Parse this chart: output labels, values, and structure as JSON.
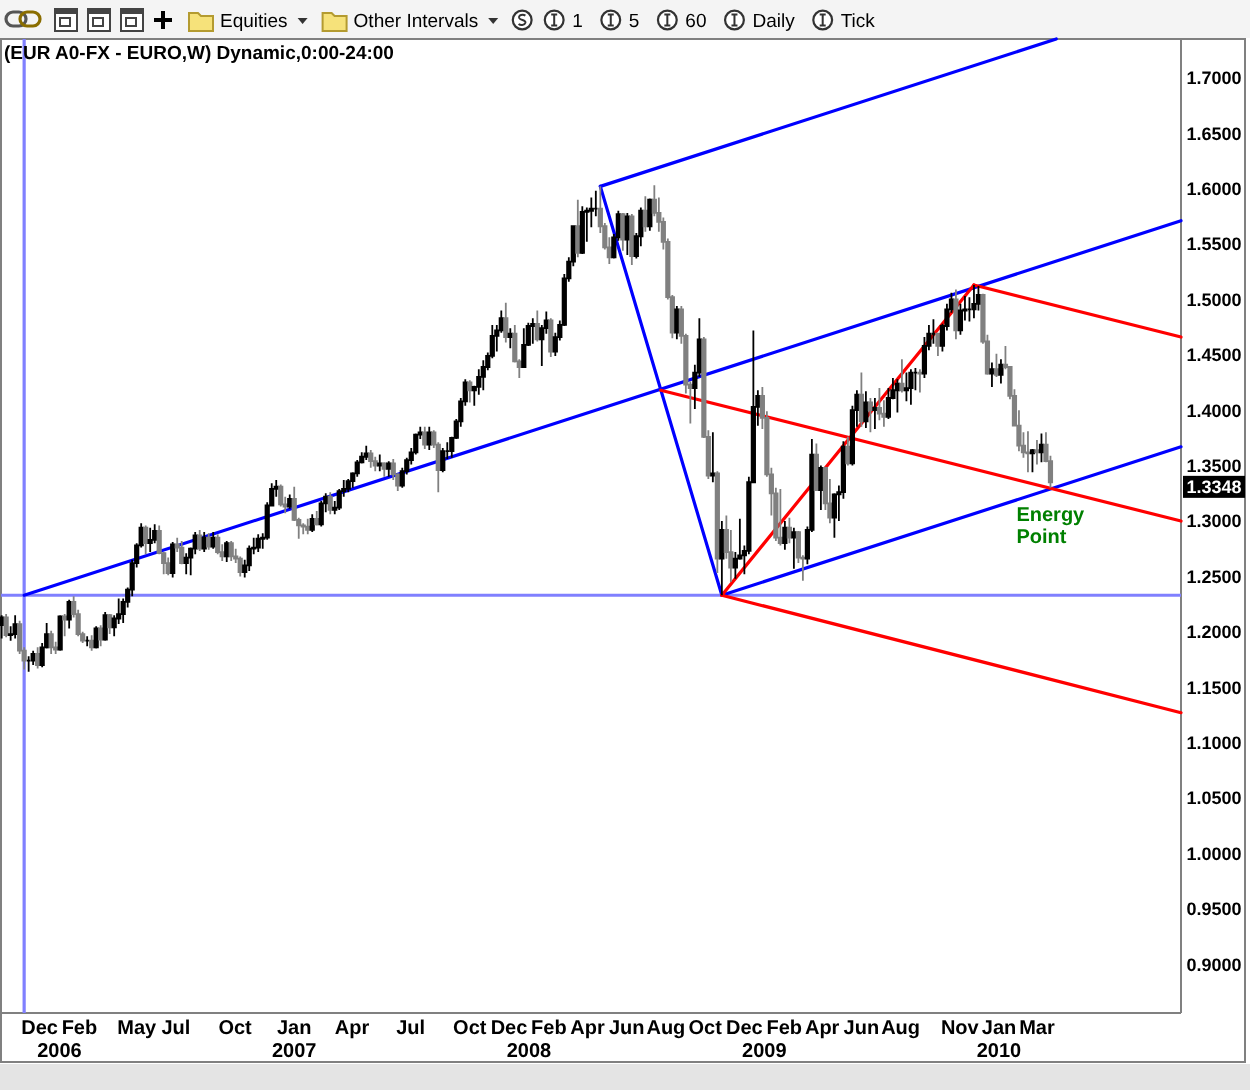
{
  "chart_data": {
    "type": "candlestick",
    "title": "(EUR A0-FX - EURO,W) Dynamic,0:00-24:00",
    "xlim": [
      "2005-10-02",
      "2010-10-11"
    ],
    "ylim": [
      0.856,
      1.735
    ],
    "xticks": [
      {
        "value": "2005-12-01",
        "label": "Dec"
      },
      {
        "value": "2006-02-01",
        "label": "Feb"
      },
      {
        "value": "2006-05-01",
        "label": "May"
      },
      {
        "value": "2006-07-01",
        "label": "Jul"
      },
      {
        "value": "2006-10-01",
        "label": "Oct"
      },
      {
        "value": "2007-01-01",
        "label": "Jan"
      },
      {
        "value": "2007-04-01",
        "label": "Apr"
      },
      {
        "value": "2007-07-01",
        "label": "Jul"
      },
      {
        "value": "2007-10-01",
        "label": "Oct"
      },
      {
        "value": "2007-12-01",
        "label": "Dec"
      },
      {
        "value": "2008-02-01",
        "label": "Feb"
      },
      {
        "value": "2008-04-01",
        "label": "Apr"
      },
      {
        "value": "2008-06-01",
        "label": "Jun"
      },
      {
        "value": "2008-08-01",
        "label": "Aug"
      },
      {
        "value": "2008-10-01",
        "label": "Oct"
      },
      {
        "value": "2008-12-01",
        "label": "Dec"
      },
      {
        "value": "2009-02-01",
        "label": "Feb"
      },
      {
        "value": "2009-04-01",
        "label": "Apr"
      },
      {
        "value": "2009-06-01",
        "label": "Jun"
      },
      {
        "value": "2009-08-01",
        "label": "Aug"
      },
      {
        "value": "2009-11-01",
        "label": "Nov"
      },
      {
        "value": "2010-01-01",
        "label": "Jan"
      },
      {
        "value": "2010-03-01",
        "label": "Mar"
      }
    ],
    "x2lim": [
      "2005-10-02",
      "2010-10-11"
    ],
    "x2ticks": [
      {
        "value": "2006-01-01",
        "label": "2006"
      },
      {
        "value": "2007-01-01",
        "label": "2007"
      },
      {
        "value": "2008-01-01",
        "label": "2008"
      },
      {
        "value": "2009-01-01",
        "label": "2009"
      },
      {
        "value": "2010-01-01",
        "label": "2010"
      }
    ],
    "yticks": [
      {
        "value": 0.9,
        "label": "0.9000"
      },
      {
        "value": 0.95,
        "label": "0.9500"
      },
      {
        "value": 1,
        "label": "1.0000"
      },
      {
        "value": 1.05,
        "label": "1.0500"
      },
      {
        "value": 1.1,
        "label": "1.1000"
      },
      {
        "value": 1.15,
        "label": "1.1500"
      },
      {
        "value": 1.2,
        "label": "1.2000"
      },
      {
        "value": 1.25,
        "label": "1.2500"
      },
      {
        "value": 1.3,
        "label": "1.3000"
      },
      {
        "value": 1.35,
        "label": "1.3500"
      },
      {
        "value": 1.4,
        "label": "1.4000"
      },
      {
        "value": 1.45,
        "label": "1.4500"
      },
      {
        "value": 1.5,
        "label": "1.5000"
      },
      {
        "value": 1.55,
        "label": "1.5500"
      },
      {
        "value": 1.6,
        "label": "1.6000"
      },
      {
        "value": 1.65,
        "label": "1.6500"
      },
      {
        "value": 1.7,
        "label": "1.7000"
      }
    ],
    "x": [
      "2005-10-03",
      "2005-10-10",
      "2005-10-17",
      "2005-10-24",
      "2005-10-31",
      "2005-11-07",
      "2005-11-14",
      "2005-11-21",
      "2005-11-28",
      "2005-12-05",
      "2005-12-12",
      "2005-12-19",
      "2005-12-26",
      "2006-01-02",
      "2006-01-09",
      "2006-01-16",
      "2006-01-23",
      "2006-01-30",
      "2006-02-06",
      "2006-02-13",
      "2006-02-20",
      "2006-02-27",
      "2006-03-06",
      "2006-03-13",
      "2006-03-20",
      "2006-03-27",
      "2006-04-03",
      "2006-04-10",
      "2006-04-17",
      "2006-04-24",
      "2006-05-01",
      "2006-05-08",
      "2006-05-15",
      "2006-05-22",
      "2006-05-29",
      "2006-06-05",
      "2006-06-12",
      "2006-06-19",
      "2006-06-26",
      "2006-07-03",
      "2006-07-10",
      "2006-07-17",
      "2006-07-24",
      "2006-07-31",
      "2006-08-07",
      "2006-08-14",
      "2006-08-21",
      "2006-08-28",
      "2006-09-04",
      "2006-09-11",
      "2006-09-18",
      "2006-09-25",
      "2006-10-02",
      "2006-10-09",
      "2006-10-16",
      "2006-10-23",
      "2006-10-30",
      "2006-11-06",
      "2006-11-13",
      "2006-11-20",
      "2006-11-27",
      "2006-12-04",
      "2006-12-11",
      "2006-12-18",
      "2006-12-25",
      "2007-01-01",
      "2007-01-08",
      "2007-01-15",
      "2007-01-22",
      "2007-01-29",
      "2007-02-05",
      "2007-02-12",
      "2007-02-19",
      "2007-02-26",
      "2007-03-05",
      "2007-03-12",
      "2007-03-19",
      "2007-03-26",
      "2007-04-02",
      "2007-04-09",
      "2007-04-16",
      "2007-04-23",
      "2007-04-30",
      "2007-05-07",
      "2007-05-14",
      "2007-05-21",
      "2007-05-28",
      "2007-06-04",
      "2007-06-11",
      "2007-06-18",
      "2007-06-25",
      "2007-07-02",
      "2007-07-09",
      "2007-07-16",
      "2007-07-23",
      "2007-07-30",
      "2007-08-06",
      "2007-08-13",
      "2007-08-20",
      "2007-08-27",
      "2007-09-03",
      "2007-09-10",
      "2007-09-17",
      "2007-09-24",
      "2007-10-01",
      "2007-10-08",
      "2007-10-15",
      "2007-10-22",
      "2007-10-29",
      "2007-11-05",
      "2007-11-12",
      "2007-11-19",
      "2007-11-26",
      "2007-12-03",
      "2007-12-10",
      "2007-12-17",
      "2007-12-24",
      "2007-12-31",
      "2008-01-07",
      "2008-01-14",
      "2008-01-21",
      "2008-01-28",
      "2008-02-04",
      "2008-02-11",
      "2008-02-18",
      "2008-02-25",
      "2008-03-03",
      "2008-03-10",
      "2008-03-17",
      "2008-03-24",
      "2008-03-31",
      "2008-04-07",
      "2008-04-14",
      "2008-04-21",
      "2008-04-28",
      "2008-05-05",
      "2008-05-12",
      "2008-05-19",
      "2008-05-26",
      "2008-06-02",
      "2008-06-09",
      "2008-06-16",
      "2008-06-23",
      "2008-06-30",
      "2008-07-07",
      "2008-07-14",
      "2008-07-21",
      "2008-07-28",
      "2008-08-04",
      "2008-08-11",
      "2008-08-18",
      "2008-08-25",
      "2008-09-01",
      "2008-09-08",
      "2008-09-15",
      "2008-09-22",
      "2008-09-29",
      "2008-10-06",
      "2008-10-13",
      "2008-10-20",
      "2008-10-27",
      "2008-11-03",
      "2008-11-10",
      "2008-11-17",
      "2008-11-24",
      "2008-12-01",
      "2008-12-08",
      "2008-12-15",
      "2008-12-22",
      "2008-12-29",
      "2009-01-05",
      "2009-01-12",
      "2009-01-19",
      "2009-01-26",
      "2009-02-02",
      "2009-02-09",
      "2009-02-16",
      "2009-02-23",
      "2009-03-02",
      "2009-03-09",
      "2009-03-16",
      "2009-03-23",
      "2009-03-30",
      "2009-04-06",
      "2009-04-13",
      "2009-04-20",
      "2009-04-27",
      "2009-05-04",
      "2009-05-11",
      "2009-05-18",
      "2009-05-25",
      "2009-06-01",
      "2009-06-08",
      "2009-06-15",
      "2009-06-22",
      "2009-06-29",
      "2009-07-06",
      "2009-07-13",
      "2009-07-20",
      "2009-07-27",
      "2009-08-03",
      "2009-08-10",
      "2009-08-17",
      "2009-08-24",
      "2009-08-31",
      "2009-09-07",
      "2009-09-14",
      "2009-09-21",
      "2009-09-28",
      "2009-10-05",
      "2009-10-12",
      "2009-10-19",
      "2009-10-26",
      "2009-11-02",
      "2009-11-09",
      "2009-11-16",
      "2009-11-23",
      "2009-11-30",
      "2009-12-07",
      "2009-12-14",
      "2009-12-21",
      "2009-12-28",
      "2010-01-04",
      "2010-01-11",
      "2010-01-18",
      "2010-01-25",
      "2010-02-01",
      "2010-02-08",
      "2010-02-15",
      "2010-02-22",
      "2010-03-01",
      "2010-03-08",
      "2010-03-15",
      "2010-03-22"
    ],
    "ohlc": [
      [
        1.206,
        1.215,
        1.194,
        1.213
      ],
      [
        1.213,
        1.216,
        1.195,
        1.197
      ],
      [
        1.197,
        1.205,
        1.192,
        1.198
      ],
      [
        1.198,
        1.215,
        1.194,
        1.207
      ],
      [
        1.207,
        1.21,
        1.18,
        1.183
      ],
      [
        1.183,
        1.186,
        1.166,
        1.174
      ],
      [
        1.174,
        1.178,
        1.164,
        1.174
      ],
      [
        1.174,
        1.183,
        1.17,
        1.18
      ],
      [
        1.18,
        1.186,
        1.167,
        1.17
      ],
      [
        1.17,
        1.19,
        1.168,
        1.186
      ],
      [
        1.186,
        1.208,
        1.185,
        1.198
      ],
      [
        1.198,
        1.201,
        1.18,
        1.186
      ],
      [
        1.186,
        1.191,
        1.18,
        1.184
      ],
      [
        1.184,
        1.215,
        1.183,
        1.214
      ],
      [
        1.214,
        1.216,
        1.196,
        1.211
      ],
      [
        1.211,
        1.229,
        1.203,
        1.227
      ],
      [
        1.227,
        1.232,
        1.213,
        1.216
      ],
      [
        1.216,
        1.22,
        1.196,
        1.198
      ],
      [
        1.198,
        1.2,
        1.19,
        1.192
      ],
      [
        1.192,
        1.196,
        1.187,
        1.192
      ],
      [
        1.192,
        1.197,
        1.183,
        1.186
      ],
      [
        1.186,
        1.205,
        1.185,
        1.203
      ],
      [
        1.203,
        1.206,
        1.187,
        1.193
      ],
      [
        1.193,
        1.218,
        1.192,
        1.215
      ],
      [
        1.215,
        1.216,
        1.198,
        1.204
      ],
      [
        1.204,
        1.215,
        1.196,
        1.212
      ],
      [
        1.212,
        1.23,
        1.207,
        1.216
      ],
      [
        1.216,
        1.23,
        1.208,
        1.227
      ],
      [
        1.227,
        1.24,
        1.222,
        1.238
      ],
      [
        1.238,
        1.265,
        1.232,
        1.262
      ],
      [
        1.262,
        1.28,
        1.258,
        1.278
      ],
      [
        1.278,
        1.298,
        1.276,
        1.294
      ],
      [
        1.294,
        1.296,
        1.27,
        1.28
      ],
      [
        1.28,
        1.294,
        1.272,
        1.283
      ],
      [
        1.283,
        1.297,
        1.28,
        1.291
      ],
      [
        1.291,
        1.296,
        1.27,
        1.271
      ],
      [
        1.271,
        1.272,
        1.252,
        1.262
      ],
      [
        1.262,
        1.267,
        1.251,
        1.253
      ],
      [
        1.253,
        1.281,
        1.249,
        1.279
      ],
      [
        1.279,
        1.285,
        1.272,
        1.276
      ],
      [
        1.276,
        1.282,
        1.261,
        1.262
      ],
      [
        1.262,
        1.271,
        1.252,
        1.267
      ],
      [
        1.267,
        1.276,
        1.251,
        1.275
      ],
      [
        1.275,
        1.29,
        1.27,
        1.287
      ],
      [
        1.287,
        1.292,
        1.273,
        1.275
      ],
      [
        1.275,
        1.29,
        1.272,
        1.285
      ],
      [
        1.285,
        1.289,
        1.274,
        1.277
      ],
      [
        1.277,
        1.29,
        1.275,
        1.285
      ],
      [
        1.285,
        1.288,
        1.27,
        1.272
      ],
      [
        1.272,
        1.279,
        1.264,
        1.268
      ],
      [
        1.268,
        1.282,
        1.263,
        1.28
      ],
      [
        1.28,
        1.282,
        1.264,
        1.268
      ],
      [
        1.268,
        1.275,
        1.262,
        1.266
      ],
      [
        1.266,
        1.268,
        1.25,
        1.254
      ],
      [
        1.254,
        1.265,
        1.249,
        1.26
      ],
      [
        1.26,
        1.278,
        1.255,
        1.275
      ],
      [
        1.275,
        1.285,
        1.27,
        1.276
      ],
      [
        1.276,
        1.288,
        1.272,
        1.284
      ],
      [
        1.284,
        1.289,
        1.275,
        1.285
      ],
      [
        1.285,
        1.317,
        1.283,
        1.314
      ],
      [
        1.314,
        1.334,
        1.313,
        1.329
      ],
      [
        1.329,
        1.337,
        1.322,
        1.331
      ],
      [
        1.331,
        1.333,
        1.313,
        1.315
      ],
      [
        1.315,
        1.322,
        1.307,
        1.313
      ],
      [
        1.313,
        1.324,
        1.311,
        1.32
      ],
      [
        1.32,
        1.331,
        1.3,
        1.301
      ],
      [
        1.301,
        1.303,
        1.284,
        1.296
      ],
      [
        1.296,
        1.298,
        1.288,
        1.295
      ],
      [
        1.295,
        1.302,
        1.288,
        1.292
      ],
      [
        1.292,
        1.306,
        1.29,
        1.302
      ],
      [
        1.302,
        1.309,
        1.296,
        1.297
      ],
      [
        1.297,
        1.318,
        1.295,
        1.316
      ],
      [
        1.316,
        1.325,
        1.308,
        1.322
      ],
      [
        1.322,
        1.326,
        1.306,
        1.31
      ],
      [
        1.31,
        1.318,
        1.306,
        1.312
      ],
      [
        1.312,
        1.329,
        1.31,
        1.327
      ],
      [
        1.327,
        1.337,
        1.322,
        1.329
      ],
      [
        1.329,
        1.338,
        1.326,
        1.336
      ],
      [
        1.336,
        1.344,
        1.33,
        1.343
      ],
      [
        1.343,
        1.355,
        1.34,
        1.353
      ],
      [
        1.353,
        1.362,
        1.352,
        1.358
      ],
      [
        1.358,
        1.368,
        1.355,
        1.361
      ],
      [
        1.361,
        1.364,
        1.348,
        1.354
      ],
      [
        1.354,
        1.358,
        1.345,
        1.35
      ],
      [
        1.35,
        1.36,
        1.345,
        1.352
      ],
      [
        1.352,
        1.353,
        1.34,
        1.347
      ],
      [
        1.347,
        1.354,
        1.34,
        1.352
      ],
      [
        1.352,
        1.356,
        1.337,
        1.342
      ],
      [
        1.342,
        1.343,
        1.327,
        1.332
      ],
      [
        1.332,
        1.348,
        1.33,
        1.345
      ],
      [
        1.345,
        1.357,
        1.342,
        1.355
      ],
      [
        1.355,
        1.366,
        1.351,
        1.362
      ],
      [
        1.362,
        1.379,
        1.36,
        1.378
      ],
      [
        1.378,
        1.385,
        1.374,
        1.38
      ],
      [
        1.38,
        1.385,
        1.365,
        1.369
      ],
      [
        1.369,
        1.385,
        1.364,
        1.38
      ],
      [
        1.38,
        1.382,
        1.366,
        1.369
      ],
      [
        1.369,
        1.371,
        1.326,
        1.346
      ],
      [
        1.346,
        1.366,
        1.344,
        1.363
      ],
      [
        1.363,
        1.371,
        1.356,
        1.363
      ],
      [
        1.363,
        1.376,
        1.357,
        1.375
      ],
      [
        1.375,
        1.392,
        1.374,
        1.39
      ],
      [
        1.39,
        1.411,
        1.385,
        1.408
      ],
      [
        1.408,
        1.428,
        1.404,
        1.425
      ],
      [
        1.425,
        1.427,
        1.407,
        1.418
      ],
      [
        1.418,
        1.422,
        1.404,
        1.421
      ],
      [
        1.421,
        1.437,
        1.414,
        1.43
      ],
      [
        1.43,
        1.445,
        1.418,
        1.439
      ],
      [
        1.439,
        1.452,
        1.436,
        1.449
      ],
      [
        1.449,
        1.477,
        1.447,
        1.467
      ],
      [
        1.467,
        1.477,
        1.453,
        1.472
      ],
      [
        1.472,
        1.49,
        1.47,
        1.483
      ],
      [
        1.483,
        1.497,
        1.461,
        1.466
      ],
      [
        1.466,
        1.474,
        1.456,
        1.469
      ],
      [
        1.469,
        1.477,
        1.443,
        1.444
      ],
      [
        1.444,
        1.446,
        1.429,
        1.439
      ],
      [
        1.439,
        1.474,
        1.438,
        1.459
      ],
      [
        1.459,
        1.479,
        1.458,
        1.476
      ],
      [
        1.476,
        1.483,
        1.46,
        1.478
      ],
      [
        1.478,
        1.49,
        1.462,
        1.464
      ],
      [
        1.464,
        1.477,
        1.44,
        1.474
      ],
      [
        1.474,
        1.489,
        1.469,
        1.481
      ],
      [
        1.481,
        1.483,
        1.448,
        1.453
      ],
      [
        1.453,
        1.47,
        1.449,
        1.466
      ],
      [
        1.466,
        1.481,
        1.463,
        1.477
      ],
      [
        1.477,
        1.523,
        1.476,
        1.519
      ],
      [
        1.519,
        1.538,
        1.516,
        1.534
      ],
      [
        1.534,
        1.567,
        1.53,
        1.566
      ],
      [
        1.566,
        1.59,
        1.538,
        1.542
      ],
      [
        1.542,
        1.584,
        1.541,
        1.579
      ],
      [
        1.579,
        1.583,
        1.552,
        1.58
      ],
      [
        1.58,
        1.592,
        1.565,
        1.582
      ],
      [
        1.582,
        1.598,
        1.575,
        1.582
      ],
      [
        1.582,
        1.602,
        1.56,
        1.566
      ],
      [
        1.566,
        1.569,
        1.545,
        1.547
      ],
      [
        1.547,
        1.556,
        1.532,
        1.538
      ],
      [
        1.538,
        1.559,
        1.537,
        1.556
      ],
      [
        1.556,
        1.58,
        1.553,
        1.577
      ],
      [
        1.577,
        1.578,
        1.544,
        1.554
      ],
      [
        1.554,
        1.578,
        1.54,
        1.575
      ],
      [
        1.575,
        1.577,
        1.531,
        1.539
      ],
      [
        1.539,
        1.56,
        1.537,
        1.557
      ],
      [
        1.557,
        1.583,
        1.548,
        1.58
      ],
      [
        1.58,
        1.593,
        1.561,
        1.566
      ],
      [
        1.566,
        1.591,
        1.562,
        1.59
      ],
      [
        1.59,
        1.603,
        1.575,
        1.578
      ],
      [
        1.578,
        1.592,
        1.561,
        1.57
      ],
      [
        1.57,
        1.574,
        1.545,
        1.552
      ],
      [
        1.552,
        1.555,
        1.5,
        1.502
      ],
      [
        1.502,
        1.504,
        1.465,
        1.47
      ],
      [
        1.47,
        1.494,
        1.464,
        1.491
      ],
      [
        1.491,
        1.494,
        1.46,
        1.467
      ],
      [
        1.467,
        1.469,
        1.415,
        1.423
      ],
      [
        1.423,
        1.426,
        1.388,
        1.42
      ],
      [
        1.42,
        1.441,
        1.401,
        1.434
      ],
      [
        1.434,
        1.483,
        1.43,
        1.464
      ],
      [
        1.464,
        1.466,
        1.375,
        1.376
      ],
      [
        1.376,
        1.382,
        1.338,
        1.341
      ],
      [
        1.341,
        1.38,
        1.335,
        1.343
      ],
      [
        1.343,
        1.345,
        1.253,
        1.266
      ],
      [
        1.266,
        1.3,
        1.233,
        1.292
      ],
      [
        1.292,
        1.305,
        1.266,
        1.272
      ],
      [
        1.272,
        1.292,
        1.245,
        1.258
      ],
      [
        1.258,
        1.272,
        1.248,
        1.266
      ],
      [
        1.266,
        1.302,
        1.265,
        1.269
      ],
      [
        1.269,
        1.278,
        1.252,
        1.273
      ],
      [
        1.273,
        1.34,
        1.27,
        1.335
      ],
      [
        1.335,
        1.472,
        1.335,
        1.403
      ],
      [
        1.403,
        1.418,
        1.386,
        1.413
      ],
      [
        1.413,
        1.421,
        1.383,
        1.393
      ],
      [
        1.393,
        1.399,
        1.34,
        1.342
      ],
      [
        1.342,
        1.348,
        1.305,
        1.325
      ],
      [
        1.325,
        1.33,
        1.282,
        1.285
      ],
      [
        1.285,
        1.329,
        1.278,
        1.28
      ],
      [
        1.28,
        1.3,
        1.274,
        1.294
      ],
      [
        1.294,
        1.303,
        1.28,
        1.285
      ],
      [
        1.285,
        1.294,
        1.257,
        1.29
      ],
      [
        1.29,
        1.291,
        1.262,
        1.267
      ],
      [
        1.267,
        1.269,
        1.246,
        1.266
      ],
      [
        1.266,
        1.295,
        1.261,
        1.292
      ],
      [
        1.292,
        1.374,
        1.29,
        1.36
      ],
      [
        1.36,
        1.37,
        1.327,
        1.328
      ],
      [
        1.328,
        1.35,
        1.31,
        1.348
      ],
      [
        1.348,
        1.349,
        1.31,
        1.316
      ],
      [
        1.316,
        1.338,
        1.298,
        1.303
      ],
      [
        1.303,
        1.325,
        1.285,
        1.324
      ],
      [
        1.324,
        1.332,
        1.3,
        1.326
      ],
      [
        1.326,
        1.372,
        1.32,
        1.367
      ],
      [
        1.367,
        1.376,
        1.35,
        1.352
      ],
      [
        1.352,
        1.404,
        1.35,
        1.4
      ],
      [
        1.4,
        1.418,
        1.385,
        1.414
      ],
      [
        1.414,
        1.434,
        1.385,
        1.39
      ],
      [
        1.39,
        1.417,
        1.384,
        1.407
      ],
      [
        1.407,
        1.411,
        1.38,
        1.4
      ],
      [
        1.4,
        1.411,
        1.383,
        1.402
      ],
      [
        1.402,
        1.42,
        1.391,
        1.397
      ],
      [
        1.397,
        1.409,
        1.385,
        1.394
      ],
      [
        1.394,
        1.42,
        1.392,
        1.411
      ],
      [
        1.411,
        1.429,
        1.41,
        1.418
      ],
      [
        1.418,
        1.428,
        1.398,
        1.424
      ],
      [
        1.424,
        1.446,
        1.416,
        1.418
      ],
      [
        1.418,
        1.434,
        1.408,
        1.42
      ],
      [
        1.42,
        1.437,
        1.405,
        1.434
      ],
      [
        1.434,
        1.438,
        1.418,
        1.434
      ],
      [
        1.434,
        1.437,
        1.416,
        1.433
      ],
      [
        1.433,
        1.466,
        1.429,
        1.458
      ],
      [
        1.458,
        1.477,
        1.454,
        1.469
      ],
      [
        1.469,
        1.482,
        1.46,
        1.469
      ],
      [
        1.469,
        1.47,
        1.449,
        1.458
      ],
      [
        1.458,
        1.478,
        1.453,
        1.476
      ],
      [
        1.476,
        1.496,
        1.472,
        1.491
      ],
      [
        1.491,
        1.506,
        1.488,
        1.5
      ],
      [
        1.5,
        1.509,
        1.464,
        1.472
      ],
      [
        1.472,
        1.496,
        1.468,
        1.49
      ],
      [
        1.49,
        1.503,
        1.481,
        1.491
      ],
      [
        1.491,
        1.502,
        1.48,
        1.491
      ],
      [
        1.491,
        1.513,
        1.483,
        1.496
      ],
      [
        1.496,
        1.512,
        1.49,
        1.504
      ],
      [
        1.504,
        1.505,
        1.46,
        1.462
      ],
      [
        1.462,
        1.468,
        1.432,
        1.433
      ],
      [
        1.433,
        1.443,
        1.421,
        1.437
      ],
      [
        1.437,
        1.451,
        1.43,
        1.432
      ],
      [
        1.432,
        1.446,
        1.424,
        1.441
      ],
      [
        1.441,
        1.458,
        1.437,
        1.439
      ],
      [
        1.439,
        1.44,
        1.41,
        1.413
      ],
      [
        1.413,
        1.419,
        1.386,
        1.386
      ],
      [
        1.386,
        1.4,
        1.363,
        1.368
      ],
      [
        1.368,
        1.38,
        1.357,
        1.362
      ],
      [
        1.362,
        1.381,
        1.344,
        1.361
      ],
      [
        1.361,
        1.365,
        1.344,
        1.364
      ],
      [
        1.364,
        1.373,
        1.351,
        1.362
      ],
      [
        1.362,
        1.379,
        1.353,
        1.369
      ],
      [
        1.369,
        1.38,
        1.353,
        1.354
      ],
      [
        1.354,
        1.359,
        1.33,
        1.3348
      ]
    ],
    "colors": [
      "#000000",
      "#808080",
      "#000000",
      "#000000",
      "#808080",
      "#808080",
      "#000000",
      "#000000",
      "#808080",
      "#000000",
      "#000000",
      "#808080",
      "#808080",
      "#000000",
      "#808080",
      "#000000",
      "#808080",
      "#808080",
      "#808080",
      "#000000",
      "#808080",
      "#000000",
      "#808080",
      "#000000",
      "#808080",
      "#000000",
      "#000000",
      "#000000",
      "#000000",
      "#000000",
      "#000000",
      "#000000",
      "#808080",
      "#000000",
      "#000000",
      "#808080",
      "#808080",
      "#808080",
      "#000000",
      "#808080",
      "#808080",
      "#000000",
      "#000000",
      "#000000",
      "#808080",
      "#000000",
      "#808080",
      "#000000",
      "#808080",
      "#808080",
      "#000000",
      "#808080",
      "#808080",
      "#808080",
      "#000000",
      "#000000",
      "#000000",
      "#000000",
      "#000000",
      "#000000",
      "#000000",
      "#000000",
      "#808080",
      "#808080",
      "#000000",
      "#808080",
      "#808080",
      "#808080",
      "#808080",
      "#000000",
      "#808080",
      "#000000",
      "#000000",
      "#808080",
      "#000000",
      "#000000",
      "#000000",
      "#000000",
      "#000000",
      "#000000",
      "#000000",
      "#000000",
      "#808080",
      "#808080",
      "#000000",
      "#808080",
      "#000000",
      "#808080",
      "#808080",
      "#000000",
      "#000000",
      "#000000",
      "#000000",
      "#000000",
      "#808080",
      "#000000",
      "#808080",
      "#808080",
      "#000000",
      "#000000",
      "#000000",
      "#000000",
      "#000000",
      "#000000",
      "#808080",
      "#000000",
      "#000000",
      "#000000",
      "#000000",
      "#000000",
      "#000000",
      "#000000",
      "#808080",
      "#000000",
      "#808080",
      "#808080",
      "#000000",
      "#000000",
      "#000000",
      "#808080",
      "#000000",
      "#000000",
      "#808080",
      "#000000",
      "#000000",
      "#000000",
      "#000000",
      "#000000",
      "#808080",
      "#000000",
      "#000000",
      "#000000",
      "#000000",
      "#808080",
      "#808080",
      "#808080",
      "#000000",
      "#000000",
      "#808080",
      "#000000",
      "#808080",
      "#000000",
      "#000000",
      "#808080",
      "#000000",
      "#808080",
      "#808080",
      "#808080",
      "#808080",
      "#808080",
      "#000000",
      "#808080",
      "#808080",
      "#808080",
      "#000000",
      "#000000",
      "#808080",
      "#808080",
      "#000000",
      "#808080",
      "#000000",
      "#808080",
      "#808080",
      "#000000",
      "#000000",
      "#000000",
      "#000000",
      "#000000",
      "#000000",
      "#808080",
      "#808080",
      "#808080",
      "#808080",
      "#808080",
      "#000000",
      "#808080",
      "#000000",
      "#808080",
      "#808080",
      "#000000",
      "#000000",
      "#808080",
      "#000000",
      "#808080",
      "#808080",
      "#000000",
      "#000000",
      "#000000",
      "#808080",
      "#000000",
      "#000000",
      "#808080",
      "#000000",
      "#808080",
      "#000000",
      "#808080",
      "#808080",
      "#000000",
      "#000000",
      "#000000",
      "#808080",
      "#000000",
      "#000000",
      "#000000",
      "#808080",
      "#000000",
      "#000000",
      "#000000",
      "#808080",
      "#000000",
      "#000000",
      "#000000",
      "#808080",
      "#000000",
      "#000000",
      "#000000",
      "#000000",
      "#000000",
      "#808080",
      "#808080",
      "#000000",
      "#808080",
      "#000000",
      "#808080",
      "#808080",
      "#808080",
      "#808080",
      "#808080",
      "#808080",
      "#000000",
      "#808080",
      "#000000",
      "#808080",
      "#808080"
    ],
    "value_labels": [
      null,
      null,
      null,
      null,
      null,
      null,
      null,
      null,
      null,
      null,
      null,
      null,
      null,
      null,
      null,
      null,
      null,
      null,
      null,
      null,
      null,
      null,
      null,
      null,
      null,
      null,
      null,
      null,
      null,
      null,
      null,
      null,
      null,
      null,
      null,
      null,
      null,
      null,
      null,
      null,
      null,
      null,
      null,
      null,
      null,
      null,
      null,
      null,
      null,
      null,
      null,
      null,
      null,
      null,
      null,
      null,
      null,
      null,
      null,
      null,
      null,
      null,
      null,
      null,
      null,
      null,
      null,
      null,
      null,
      null,
      null,
      null,
      null,
      null,
      null,
      null,
      null,
      null,
      null,
      null,
      null,
      null,
      null,
      null,
      null,
      null,
      null,
      null,
      null,
      null,
      null,
      null,
      null,
      null,
      null,
      null,
      null,
      null,
      null,
      null,
      null,
      null,
      null,
      null,
      null,
      null,
      null,
      null,
      null,
      null,
      null,
      null,
      null,
      null,
      null,
      null,
      null,
      null,
      null,
      null,
      null,
      null,
      null,
      null,
      null,
      null,
      null,
      null,
      null,
      null,
      null,
      null,
      null,
      null,
      null,
      null,
      null,
      null,
      null,
      null,
      null,
      null,
      null,
      null,
      null,
      null,
      null,
      null,
      null,
      null,
      null,
      null,
      null,
      null,
      null,
      null,
      null,
      null,
      null,
      null,
      null,
      null,
      null,
      null,
      null,
      null,
      null,
      null,
      null,
      null,
      null,
      null,
      null,
      null,
      null,
      null,
      null,
      null,
      null,
      null,
      null,
      null,
      null,
      null,
      null,
      null,
      null,
      null,
      null,
      null,
      null,
      null,
      null,
      null,
      null,
      null,
      null,
      null,
      null,
      null,
      null,
      null,
      null,
      null,
      null,
      null,
      null,
      null,
      null,
      null,
      null,
      null,
      null,
      null,
      null,
      null,
      null,
      null,
      null,
      null,
      null,
      null,
      null,
      null,
      null,
      null,
      null,
      null,
      null,
      null,
      null,
      null,
      null,
      "1.3348"
    ],
    "series": [
      {
        "type": "line",
        "color": "#0000ff",
        "x": [
          "2008-04-21",
          "2008-10-27"
        ],
        "values": [
          1.602,
          1.233
        ]
      },
      {
        "type": "line",
        "color": "#0000ff",
        "x": [
          "2005-11-07",
          "2010-10-11"
        ],
        "values": [
          1.233,
          1.571
        ]
      },
      {
        "type": "line",
        "color": "#0000ff",
        "x": [
          "2008-04-21",
          "2010-03-31"
        ],
        "values": [
          1.602,
          1.735
        ]
      },
      {
        "type": "line",
        "color": "#0000ff",
        "x": [
          "2008-10-27",
          "2010-10-11"
        ],
        "values": [
          1.233,
          1.367
        ]
      },
      {
        "type": "line",
        "color": "#ff0000",
        "x": [
          "2008-10-27",
          "2009-11-23"
        ],
        "values": [
          1.233,
          1.513
        ]
      },
      {
        "type": "line",
        "color": "#ff0000",
        "x": [
          "2009-11-23",
          "2010-10-11"
        ],
        "values": [
          1.513,
          1.466
        ]
      },
      {
        "type": "line",
        "color": "#ff0000",
        "x": [
          "2008-07-24",
          "2010-10-11"
        ],
        "values": [
          1.418,
          1.3
        ]
      },
      {
        "type": "line",
        "color": "#ff0000",
        "x": [
          "2008-10-27",
          "2010-10-11"
        ],
        "values": [
          1.233,
          1.127
        ]
      }
    ],
    "ref_lines": [
      {
        "axis": "y",
        "value": 1.233,
        "color": "#8080ff"
      },
      {
        "axis": "x",
        "value": "2005-11-07",
        "color": "#8080ff"
      }
    ],
    "annotations": [
      "Equities",
      "Other Intervals",
      "1",
      "5",
      "60",
      "Daily",
      "Tick",
      {
        "text": "Energy Point",
        "x": "2010-03-22",
        "y": 1.33
      }
    ]
  }
}
